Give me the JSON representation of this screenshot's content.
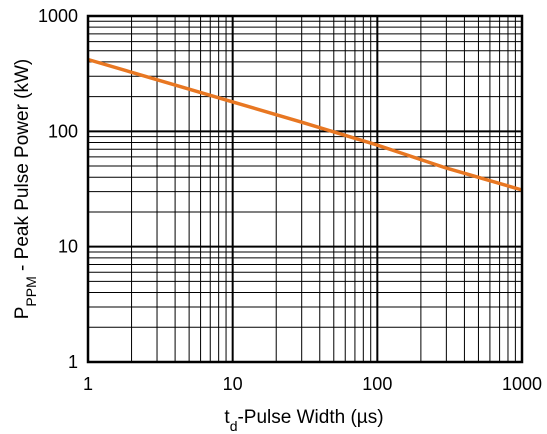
{
  "chart_data": {
    "type": "line",
    "x_scale": "log",
    "y_scale": "log",
    "xlim": [
      1,
      1000
    ],
    "ylim": [
      1,
      1000
    ],
    "grid": true,
    "xlabel": {
      "main": "t",
      "sub": "d",
      "rest": "-Pulse Width (µs)"
    },
    "ylabel": {
      "main": "P",
      "sub": "PPM",
      "rest": " - Peak Pulse Power (kW)"
    },
    "x_ticks": [
      {
        "value": 1,
        "label": "1"
      },
      {
        "value": 10,
        "label": "10"
      },
      {
        "value": 100,
        "label": "100"
      },
      {
        "value": 1000,
        "label": "1000"
      }
    ],
    "y_ticks": [
      {
        "value": 1,
        "label": "1"
      },
      {
        "value": 10,
        "label": "10"
      },
      {
        "value": 100,
        "label": "100"
      },
      {
        "value": 1000,
        "label": "1000"
      }
    ],
    "series": [
      {
        "color": "#e87722",
        "points": [
          {
            "x": 1,
            "y": 420
          },
          {
            "x": 10,
            "y": 180
          },
          {
            "x": 30,
            "y": 120
          },
          {
            "x": 100,
            "y": 76
          },
          {
            "x": 300,
            "y": 48
          },
          {
            "x": 1000,
            "y": 31
          }
        ]
      }
    ],
    "colors": {
      "grid": "#000000",
      "frame": "#000000",
      "text": "#000000"
    }
  }
}
